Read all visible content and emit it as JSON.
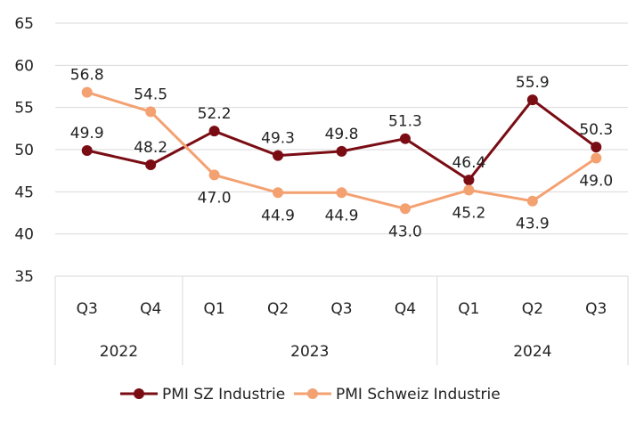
{
  "chart_data": {
    "type": "line",
    "title": "",
    "xlabel": "",
    "ylabel": "",
    "ylim": [
      35,
      65
    ],
    "yticks": [
      "35",
      "40",
      "45",
      "50",
      "55",
      "60",
      "65"
    ],
    "grid": true,
    "legend_position": "bottom",
    "categories": [
      "Q3",
      "Q4",
      "Q1",
      "Q2",
      "Q3",
      "Q4",
      "Q1",
      "Q2",
      "Q3"
    ],
    "years": [
      {
        "label": "2022",
        "count": 2
      },
      {
        "label": "2023",
        "count": 4
      },
      {
        "label": "2024",
        "count": 3
      }
    ],
    "series": [
      {
        "name": "PMI SZ Industrie",
        "color": "#7a0c14",
        "values": [
          49.9,
          48.2,
          52.2,
          49.3,
          49.8,
          51.3,
          46.4,
          55.9,
          50.3
        ],
        "labels": [
          "49.9",
          "48.2",
          "52.2",
          "49.3",
          "49.8",
          "51.3",
          "46.4",
          "55.9",
          "50.3"
        ],
        "label_pos": [
          "above",
          "above",
          "above",
          "above",
          "above",
          "above",
          "above",
          "above",
          "above"
        ]
      },
      {
        "name": "PMI Schweiz Industrie",
        "color": "#f4a172",
        "values": [
          56.8,
          54.5,
          47.0,
          44.9,
          44.9,
          43.0,
          45.2,
          43.9,
          49.0
        ],
        "labels": [
          "56.8",
          "54.5",
          "47.0",
          "44.9",
          "44.9",
          "43.0",
          "45.2",
          "43.9",
          "49.0"
        ],
        "label_pos": [
          "above",
          "above",
          "below",
          "below",
          "below",
          "below",
          "below",
          "below",
          "below"
        ]
      }
    ]
  }
}
